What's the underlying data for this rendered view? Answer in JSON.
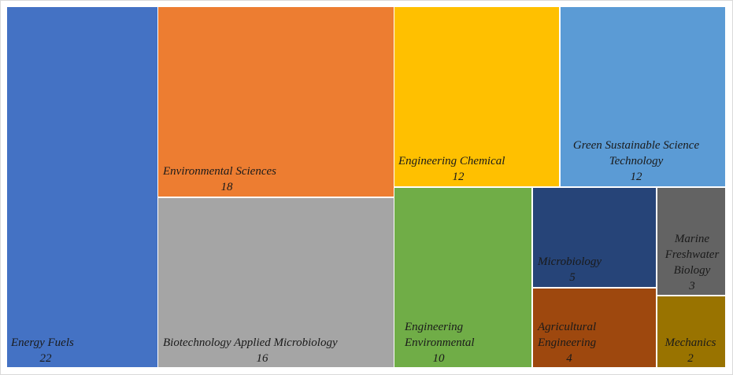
{
  "chart_data": {
    "type": "treemap",
    "title": "",
    "items": [
      {
        "name": "Energy Fuels",
        "value": 22,
        "color": "#4472C4",
        "label_lines": [
          "Energy Fuels"
        ],
        "label_align": "start"
      },
      {
        "name": "Environmental Sciences",
        "value": 18,
        "color": "#ED7D31",
        "label_lines": [
          "Environmental Sciences"
        ],
        "label_align": "start"
      },
      {
        "name": "Biotechnology Applied Microbiology",
        "value": 16,
        "color": "#A5A5A5",
        "label_lines": [
          "Biotechnology Applied Microbiology"
        ],
        "label_align": "start"
      },
      {
        "name": "Engineering Chemical",
        "value": 12,
        "color": "#FFC000",
        "label_lines": [
          "Engineering Chemical"
        ],
        "label_align": "start"
      },
      {
        "name": "Green Sustainable Science Technology",
        "value": 12,
        "color": "#5B9BD5",
        "label_lines": [
          "Green Sustainable Science",
          "Technology"
        ],
        "label_align": "center"
      },
      {
        "name": "Engineering Environmental",
        "value": 10,
        "color": "#70AD47",
        "label_lines": [
          "Engineering",
          "Environmental"
        ],
        "label_align": "start"
      },
      {
        "name": "Microbiology",
        "value": 5,
        "color": "#264478",
        "label_lines": [
          "Microbiology"
        ],
        "label_align": "start"
      },
      {
        "name": "Agricultural Engineering",
        "value": 4,
        "color": "#9E480E",
        "label_lines": [
          "Agricultural",
          "Engineering"
        ],
        "label_align": "start"
      },
      {
        "name": "Marine Freshwater Biology",
        "value": 3,
        "color": "#636363",
        "label_lines": [
          "Marine",
          "Freshwater",
          "Biology"
        ],
        "label_align": "center"
      },
      {
        "name": "Mechanics",
        "value": 2,
        "color": "#997300",
        "label_lines": [
          "Mechanics"
        ],
        "label_align": "center"
      }
    ]
  }
}
